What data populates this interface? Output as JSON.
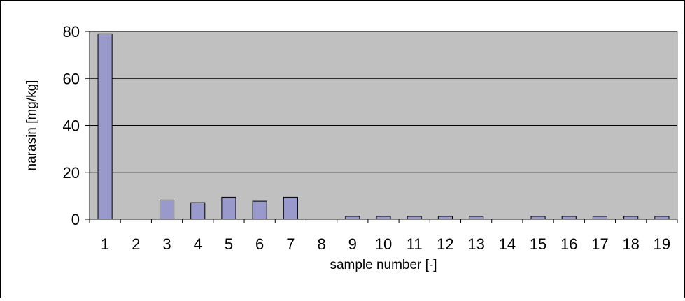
{
  "chart_data": {
    "type": "bar",
    "title": "",
    "xlabel": "sample number [-]",
    "ylabel": "narasin [mg/kg]",
    "categories": [
      "1",
      "2",
      "3",
      "4",
      "5",
      "6",
      "7",
      "8",
      "9",
      "10",
      "11",
      "12",
      "13",
      "14",
      "15",
      "16",
      "17",
      "18",
      "19"
    ],
    "values": [
      79,
      0,
      8.2,
      7.1,
      9.4,
      7.7,
      9.4,
      0,
      1.2,
      1.2,
      1.2,
      1.2,
      1.2,
      0,
      1.2,
      1.2,
      1.2,
      1.2,
      1.2
    ],
    "ylim": [
      0,
      80
    ],
    "yticks": [
      0,
      20,
      40,
      60,
      80
    ],
    "grid": true,
    "legend": "none",
    "colors": {
      "bar_fill": "#9999cc",
      "bar_stroke": "#000000",
      "plot_background": "#c0c0c0",
      "gridline": "#000000"
    }
  }
}
